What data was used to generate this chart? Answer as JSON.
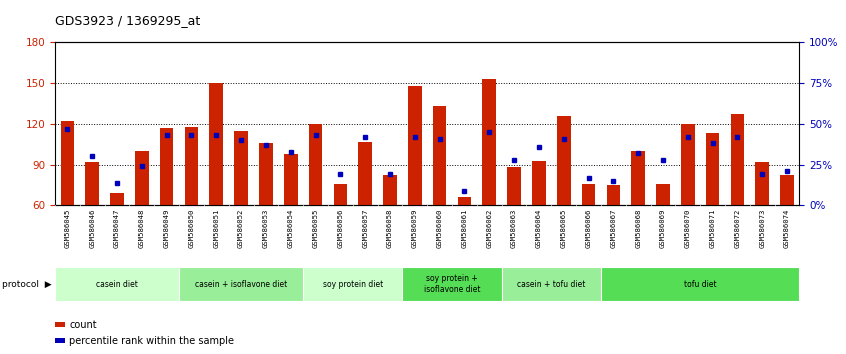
{
  "title": "GDS3923 / 1369295_at",
  "samples": [
    "GSM586045",
    "GSM586046",
    "GSM586047",
    "GSM586048",
    "GSM586049",
    "GSM586050",
    "GSM586051",
    "GSM586052",
    "GSM586053",
    "GSM586054",
    "GSM586055",
    "GSM586056",
    "GSM586057",
    "GSM586058",
    "GSM586059",
    "GSM586060",
    "GSM586061",
    "GSM586062",
    "GSM586063",
    "GSM586064",
    "GSM586065",
    "GSM586066",
    "GSM586067",
    "GSM586068",
    "GSM586069",
    "GSM586070",
    "GSM586071",
    "GSM586072",
    "GSM586073",
    "GSM586074"
  ],
  "counts": [
    122,
    92,
    69,
    100,
    117,
    118,
    150,
    115,
    106,
    98,
    120,
    76,
    107,
    82,
    148,
    133,
    66,
    153,
    88,
    93,
    126,
    76,
    75,
    100,
    76,
    120,
    113,
    127,
    92,
    82
  ],
  "percentiles_pct": [
    47,
    30,
    14,
    24,
    43,
    43,
    43,
    40,
    37,
    33,
    43,
    19,
    42,
    19,
    42,
    41,
    9,
    45,
    28,
    36,
    41,
    17,
    15,
    32,
    28,
    42,
    38,
    42,
    19,
    21
  ],
  "ymin": 60,
  "ymax": 180,
  "yticks_left": [
    60,
    90,
    120,
    150,
    180
  ],
  "yticks_right_pct": [
    0,
    25,
    50,
    75,
    100
  ],
  "bar_color": "#CC2200",
  "dot_color": "#0000BB",
  "protocols": [
    {
      "label": "casein diet",
      "start": 0,
      "end": 5,
      "color": "#CCFFCC"
    },
    {
      "label": "casein + isoflavone diet",
      "start": 5,
      "end": 10,
      "color": "#99EE99"
    },
    {
      "label": "soy protein diet",
      "start": 10,
      "end": 14,
      "color": "#CCFFCC"
    },
    {
      "label": "soy protein +\nisoflavone diet",
      "start": 14,
      "end": 18,
      "color": "#55DD55"
    },
    {
      "label": "casein + tofu diet",
      "start": 18,
      "end": 22,
      "color": "#99EE99"
    },
    {
      "label": "tofu diet",
      "start": 22,
      "end": 30,
      "color": "#55DD55"
    }
  ],
  "legend_count_label": "count",
  "legend_pct_label": "percentile rank within the sample",
  "bar_width": 0.55,
  "bg_color": "#FFFFFF",
  "tick_color_left": "#CC2200",
  "tick_color_right": "#0000BB",
  "xticklabel_bg": "#DDDDDD"
}
